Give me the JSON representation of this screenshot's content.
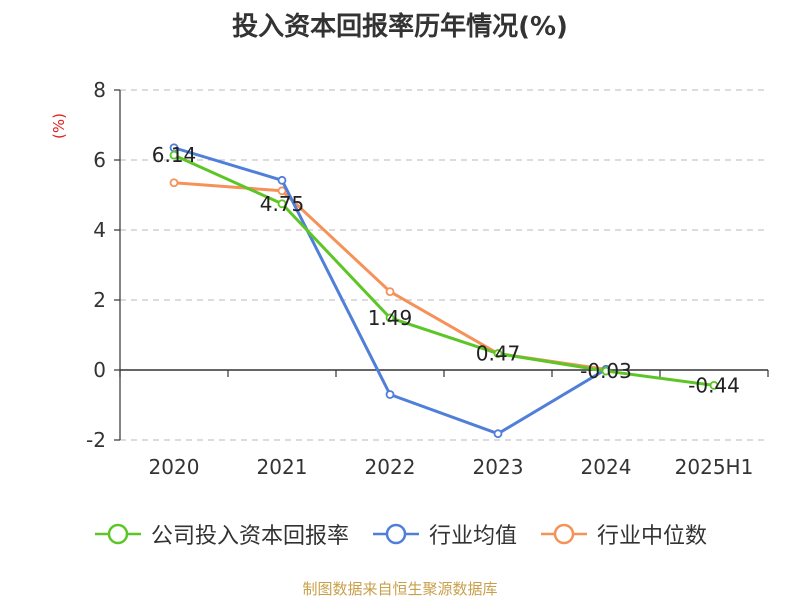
{
  "chart_data": {
    "type": "line",
    "title": "投入资本回报率历年情况(%)",
    "ylabel": "(%)",
    "xlabel": "",
    "categories": [
      "2020",
      "2021",
      "2022",
      "2023",
      "2024",
      "2025H1"
    ],
    "ylim": [
      -2,
      8
    ],
    "yticks": [
      -2,
      0,
      2,
      4,
      6,
      8
    ],
    "grid": true,
    "legend_position": "bottom",
    "series": [
      {
        "name": "公司投入资本回报率",
        "color": "#5cc626",
        "values": [
          6.14,
          4.75,
          1.49,
          0.47,
          -0.03,
          -0.44
        ],
        "labels": [
          "6.14",
          "4.75",
          "1.49",
          "0.47",
          "-0.03",
          "-0.44"
        ]
      },
      {
        "name": "行业均值",
        "color": "#4f7fd9",
        "values": [
          6.35,
          5.42,
          -0.7,
          -1.82,
          0.02,
          null
        ]
      },
      {
        "name": "行业中位数",
        "color": "#f59159",
        "values": [
          5.35,
          5.12,
          2.24,
          0.47,
          0.02,
          null
        ]
      }
    ]
  },
  "source": "制图数据来自恒生聚源数据库"
}
